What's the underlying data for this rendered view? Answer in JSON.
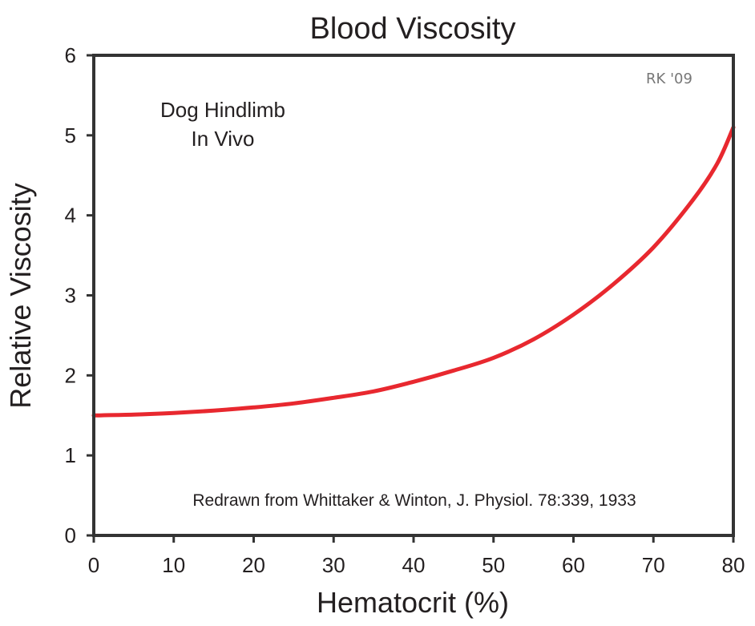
{
  "chart_data": {
    "type": "line",
    "title": "Blood Viscosity",
    "xlabel": "Hematocrit (%)",
    "ylabel": "Relative Viscosity",
    "xlim": [
      0,
      80
    ],
    "ylim": [
      0,
      6
    ],
    "xticks": [
      "0",
      "10",
      "20",
      "30",
      "40",
      "50",
      "60",
      "70",
      "80"
    ],
    "yticks": [
      "0",
      "1",
      "2",
      "3",
      "4",
      "5",
      "6"
    ],
    "grid": false,
    "series": [
      {
        "color": "#e8282f",
        "x": [
          0,
          5,
          10,
          15,
          20,
          25,
          30,
          35,
          40,
          45,
          50,
          55,
          60,
          65,
          70,
          75,
          78,
          80
        ],
        "y": [
          1.5,
          1.51,
          1.53,
          1.56,
          1.6,
          1.65,
          1.72,
          1.8,
          1.92,
          2.06,
          2.22,
          2.45,
          2.76,
          3.14,
          3.6,
          4.2,
          4.65,
          5.1
        ]
      }
    ],
    "annotations": {
      "inset_line1": "Dog Hindlimb",
      "inset_line2": "In Vivo",
      "credit": "Redrawn from Whittaker & Winton, J. Physiol. 78:339, 1933",
      "signature": "RK '09"
    }
  },
  "colors": {
    "axis": "#333333",
    "curve": "#e8282f",
    "text": "#231f20",
    "signature": "#777777"
  }
}
